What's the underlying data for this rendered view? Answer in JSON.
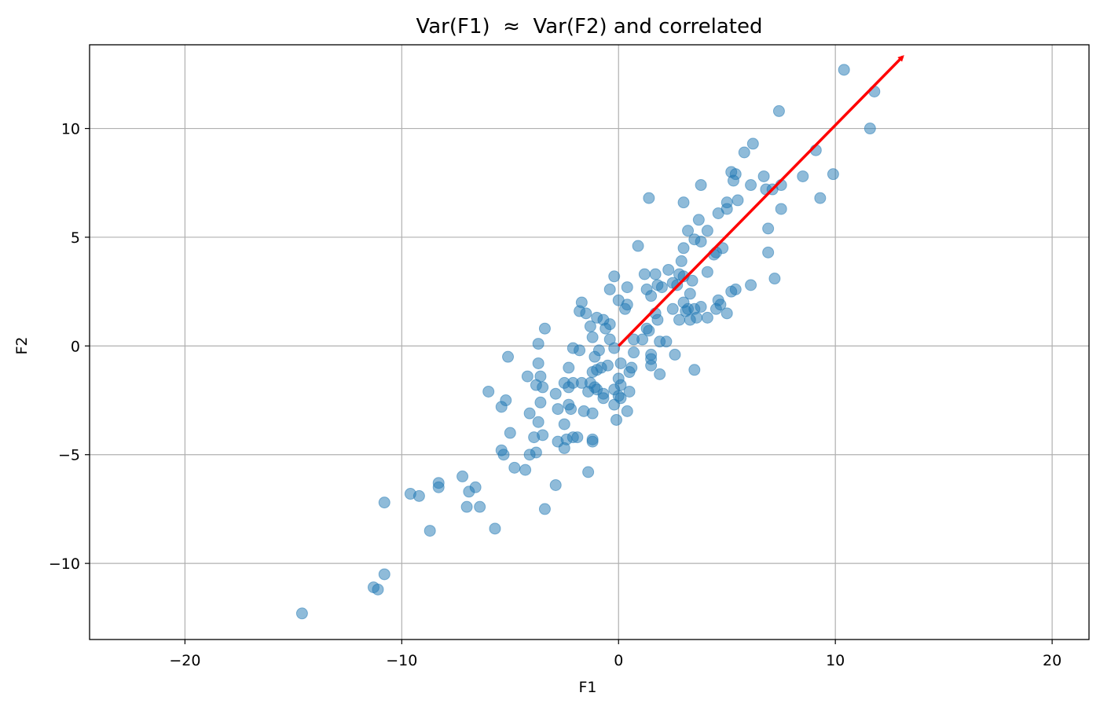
{
  "chart_data": {
    "type": "scatter",
    "title": "Var(F1)  ≈  Var(F2) and correlated",
    "xlabel": "F1",
    "ylabel": "F2",
    "xlim": [
      -24.4,
      21.7
    ],
    "ylim": [
      -13.5,
      13.85
    ],
    "grid": true,
    "xticks": [
      -20,
      -10,
      0,
      10,
      20
    ],
    "yticks": [
      -10,
      -5,
      0,
      5,
      10
    ],
    "xtick_labels": [
      "−20",
      "−10",
      "0",
      "10",
      "20"
    ],
    "ytick_labels": [
      "−10",
      "−5",
      "0",
      "5",
      "10"
    ],
    "point_color": "#1f77b4",
    "point_alpha": 0.5,
    "arrow": {
      "from": [
        0,
        0
      ],
      "to": [
        13.1,
        13.3
      ],
      "color": "#ff0000"
    },
    "points": [
      [
        10.4,
        12.7
      ],
      [
        11.8,
        11.7
      ],
      [
        11.6,
        10.0
      ],
      [
        7.4,
        10.8
      ],
      [
        9.1,
        9.0
      ],
      [
        6.2,
        9.3
      ],
      [
        5.8,
        8.9
      ],
      [
        5.2,
        8.0
      ],
      [
        5.4,
        7.9
      ],
      [
        5.3,
        7.6
      ],
      [
        6.7,
        7.8
      ],
      [
        6.1,
        7.4
      ],
      [
        6.8,
        7.2
      ],
      [
        7.1,
        7.2
      ],
      [
        7.5,
        7.4
      ],
      [
        8.5,
        7.8
      ],
      [
        9.9,
        7.9
      ],
      [
        9.3,
        6.8
      ],
      [
        7.5,
        6.3
      ],
      [
        6.9,
        5.4
      ],
      [
        6.9,
        4.3
      ],
      [
        7.2,
        3.1
      ],
      [
        6.1,
        2.8
      ],
      [
        1.4,
        6.8
      ],
      [
        3.8,
        7.4
      ],
      [
        3.0,
        6.6
      ],
      [
        5.5,
        6.7
      ],
      [
        5.0,
        6.6
      ],
      [
        5.0,
        6.3
      ],
      [
        4.6,
        6.1
      ],
      [
        3.7,
        5.8
      ],
      [
        3.2,
        5.3
      ],
      [
        4.1,
        5.3
      ],
      [
        3.5,
        4.9
      ],
      [
        3.8,
        4.8
      ],
      [
        0.9,
        4.6
      ],
      [
        3.0,
        4.5
      ],
      [
        4.8,
        4.5
      ],
      [
        4.5,
        4.3
      ],
      [
        4.4,
        4.2
      ],
      [
        2.9,
        3.9
      ],
      [
        2.3,
        3.5
      ],
      [
        1.2,
        3.3
      ],
      [
        1.7,
        3.3
      ],
      [
        2.8,
        3.3
      ],
      [
        3.0,
        3.2
      ],
      [
        4.1,
        3.4
      ],
      [
        -0.2,
        3.2
      ],
      [
        3.4,
        3.0
      ],
      [
        0.4,
        2.7
      ],
      [
        -0.4,
        2.6
      ],
      [
        1.3,
        2.6
      ],
      [
        1.8,
        2.8
      ],
      [
        2.0,
        2.7
      ],
      [
        2.7,
        2.8
      ],
      [
        2.5,
        2.9
      ],
      [
        3.3,
        2.4
      ],
      [
        1.5,
        2.3
      ],
      [
        5.4,
        2.6
      ],
      [
        5.2,
        2.5
      ],
      [
        -1.7,
        2.0
      ],
      [
        0.0,
        2.1
      ],
      [
        0.4,
        1.9
      ],
      [
        0.3,
        1.7
      ],
      [
        -1.8,
        1.6
      ],
      [
        -1.5,
        1.5
      ],
      [
        1.7,
        1.5
      ],
      [
        2.5,
        1.7
      ],
      [
        3.0,
        2.0
      ],
      [
        3.2,
        1.7
      ],
      [
        3.1,
        1.6
      ],
      [
        3.5,
        1.7
      ],
      [
        3.8,
        1.8
      ],
      [
        4.6,
        2.1
      ],
      [
        4.7,
        1.9
      ],
      [
        4.5,
        1.7
      ],
      [
        5.0,
        1.5
      ],
      [
        4.1,
        1.3
      ],
      [
        3.6,
        1.3
      ],
      [
        3.3,
        1.2
      ],
      [
        2.8,
        1.2
      ],
      [
        1.8,
        1.2
      ],
      [
        -1.0,
        1.3
      ],
      [
        -0.7,
        1.2
      ],
      [
        -0.4,
        1.0
      ],
      [
        -1.3,
        0.9
      ],
      [
        -3.4,
        0.8
      ],
      [
        -0.6,
        0.8
      ],
      [
        1.3,
        0.8
      ],
      [
        1.4,
        0.7
      ],
      [
        -1.2,
        0.4
      ],
      [
        -0.4,
        0.3
      ],
      [
        0.7,
        0.3
      ],
      [
        1.1,
        0.3
      ],
      [
        1.9,
        0.2
      ],
      [
        2.2,
        0.2
      ],
      [
        -3.7,
        0.1
      ],
      [
        -2.1,
        -0.1
      ],
      [
        -1.8,
        -0.2
      ],
      [
        -0.9,
        -0.2
      ],
      [
        -0.2,
        -0.1
      ],
      [
        0.7,
        -0.3
      ],
      [
        1.5,
        -0.4
      ],
      [
        2.6,
        -0.4
      ],
      [
        -5.1,
        -0.5
      ],
      [
        -1.1,
        -0.5
      ],
      [
        1.5,
        -0.6
      ],
      [
        0.1,
        -0.8
      ],
      [
        -3.7,
        -0.8
      ],
      [
        1.5,
        -0.9
      ],
      [
        -0.5,
        -0.9
      ],
      [
        -0.8,
        -1.0
      ],
      [
        -2.3,
        -1.0
      ],
      [
        0.6,
        -1.0
      ],
      [
        -1.0,
        -1.1
      ],
      [
        3.5,
        -1.1
      ],
      [
        0.5,
        -1.2
      ],
      [
        1.9,
        -1.3
      ],
      [
        -4.2,
        -1.4
      ],
      [
        -3.6,
        -1.4
      ],
      [
        -1.2,
        -1.2
      ],
      [
        0.0,
        -1.5
      ],
      [
        -1.3,
        -1.7
      ],
      [
        0.1,
        -1.8
      ],
      [
        -3.8,
        -1.8
      ],
      [
        -3.5,
        -1.9
      ],
      [
        -2.1,
        -1.7
      ],
      [
        -1.7,
        -1.7
      ],
      [
        -2.5,
        -1.7
      ],
      [
        -2.3,
        -1.9
      ],
      [
        -1.1,
        -1.9
      ],
      [
        -1.0,
        -2.0
      ],
      [
        0.5,
        -2.1
      ],
      [
        -6.0,
        -2.1
      ],
      [
        -1.4,
        -2.1
      ],
      [
        -0.2,
        -2.0
      ],
      [
        -2.9,
        -2.2
      ],
      [
        -0.7,
        -2.2
      ],
      [
        0.0,
        -2.3
      ],
      [
        -0.7,
        -2.4
      ],
      [
        0.1,
        -2.4
      ],
      [
        -5.2,
        -2.5
      ],
      [
        -0.2,
        -2.7
      ],
      [
        -3.6,
        -2.6
      ],
      [
        -2.3,
        -2.7
      ],
      [
        -2.2,
        -2.9
      ],
      [
        -5.4,
        -2.8
      ],
      [
        -2.8,
        -2.9
      ],
      [
        -1.6,
        -3.0
      ],
      [
        -1.2,
        -3.1
      ],
      [
        0.4,
        -3.0
      ],
      [
        -4.1,
        -3.1
      ],
      [
        -3.7,
        -3.5
      ],
      [
        -2.5,
        -3.6
      ],
      [
        -0.1,
        -3.4
      ],
      [
        -5.0,
        -4.0
      ],
      [
        -3.5,
        -4.1
      ],
      [
        -3.9,
        -4.2
      ],
      [
        -2.1,
        -4.2
      ],
      [
        -1.9,
        -4.2
      ],
      [
        -2.4,
        -4.3
      ],
      [
        -1.2,
        -4.3
      ],
      [
        -1.2,
        -4.4
      ],
      [
        -2.8,
        -4.4
      ],
      [
        -2.5,
        -4.7
      ],
      [
        -5.4,
        -4.8
      ],
      [
        -5.3,
        -5.0
      ],
      [
        -4.1,
        -5.0
      ],
      [
        -3.8,
        -4.9
      ],
      [
        -4.8,
        -5.6
      ],
      [
        -4.3,
        -5.7
      ],
      [
        -1.4,
        -5.8
      ],
      [
        -7.2,
        -6.0
      ],
      [
        -8.3,
        -6.3
      ],
      [
        -8.3,
        -6.5
      ],
      [
        -6.6,
        -6.5
      ],
      [
        -6.9,
        -6.7
      ],
      [
        -2.9,
        -6.4
      ],
      [
        -9.6,
        -6.8
      ],
      [
        -9.2,
        -6.9
      ],
      [
        -10.8,
        -7.2
      ],
      [
        -7.0,
        -7.4
      ],
      [
        -6.4,
        -7.4
      ],
      [
        -3.4,
        -7.5
      ],
      [
        -8.7,
        -8.5
      ],
      [
        -5.7,
        -8.4
      ],
      [
        -10.8,
        -10.5
      ],
      [
        -11.3,
        -11.1
      ],
      [
        -11.1,
        -11.2
      ],
      [
        -14.6,
        -12.3
      ]
    ]
  }
}
